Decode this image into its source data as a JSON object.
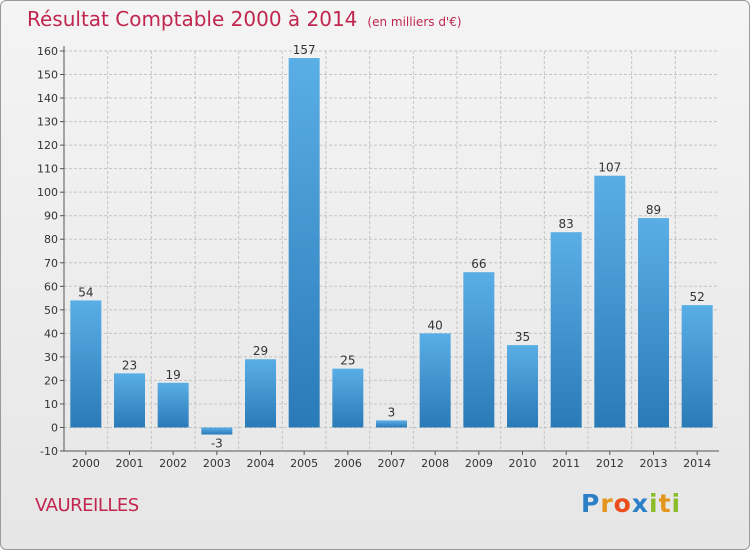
{
  "chart_data": {
    "type": "bar",
    "title": "Résultat Comptable 2000 à 2014",
    "unit": "(en milliers d'€)",
    "categories": [
      "2000",
      "2001",
      "2002",
      "2003",
      "2004",
      "2005",
      "2006",
      "2007",
      "2008",
      "2009",
      "2010",
      "2011",
      "2012",
      "2013",
      "2014"
    ],
    "values": [
      54,
      23,
      19,
      -3,
      29,
      157,
      25,
      3,
      40,
      66,
      35,
      83,
      107,
      89,
      52
    ],
    "yticks": [
      -10,
      0,
      10,
      20,
      30,
      40,
      50,
      60,
      70,
      80,
      90,
      100,
      110,
      120,
      130,
      140,
      150,
      160
    ],
    "ylim": [
      -10,
      160
    ],
    "grid": true,
    "xlabel": "",
    "ylabel": "",
    "colors": {
      "bar_light": "#5aaee6",
      "bar_dark": "#2a7ab8",
      "text": "#333333",
      "title": "#c0264f"
    }
  },
  "location": {
    "name": "VAUREILLES"
  },
  "brand": {
    "letters": [
      "P",
      "r",
      "o",
      "x",
      "i",
      "t",
      "i"
    ],
    "colors": [
      "#2b7fc7",
      "#e3951c",
      "#e94e1b",
      "#2b7fc7",
      "#8bbd2b",
      "#e3951c",
      "#8bbd2b"
    ]
  }
}
